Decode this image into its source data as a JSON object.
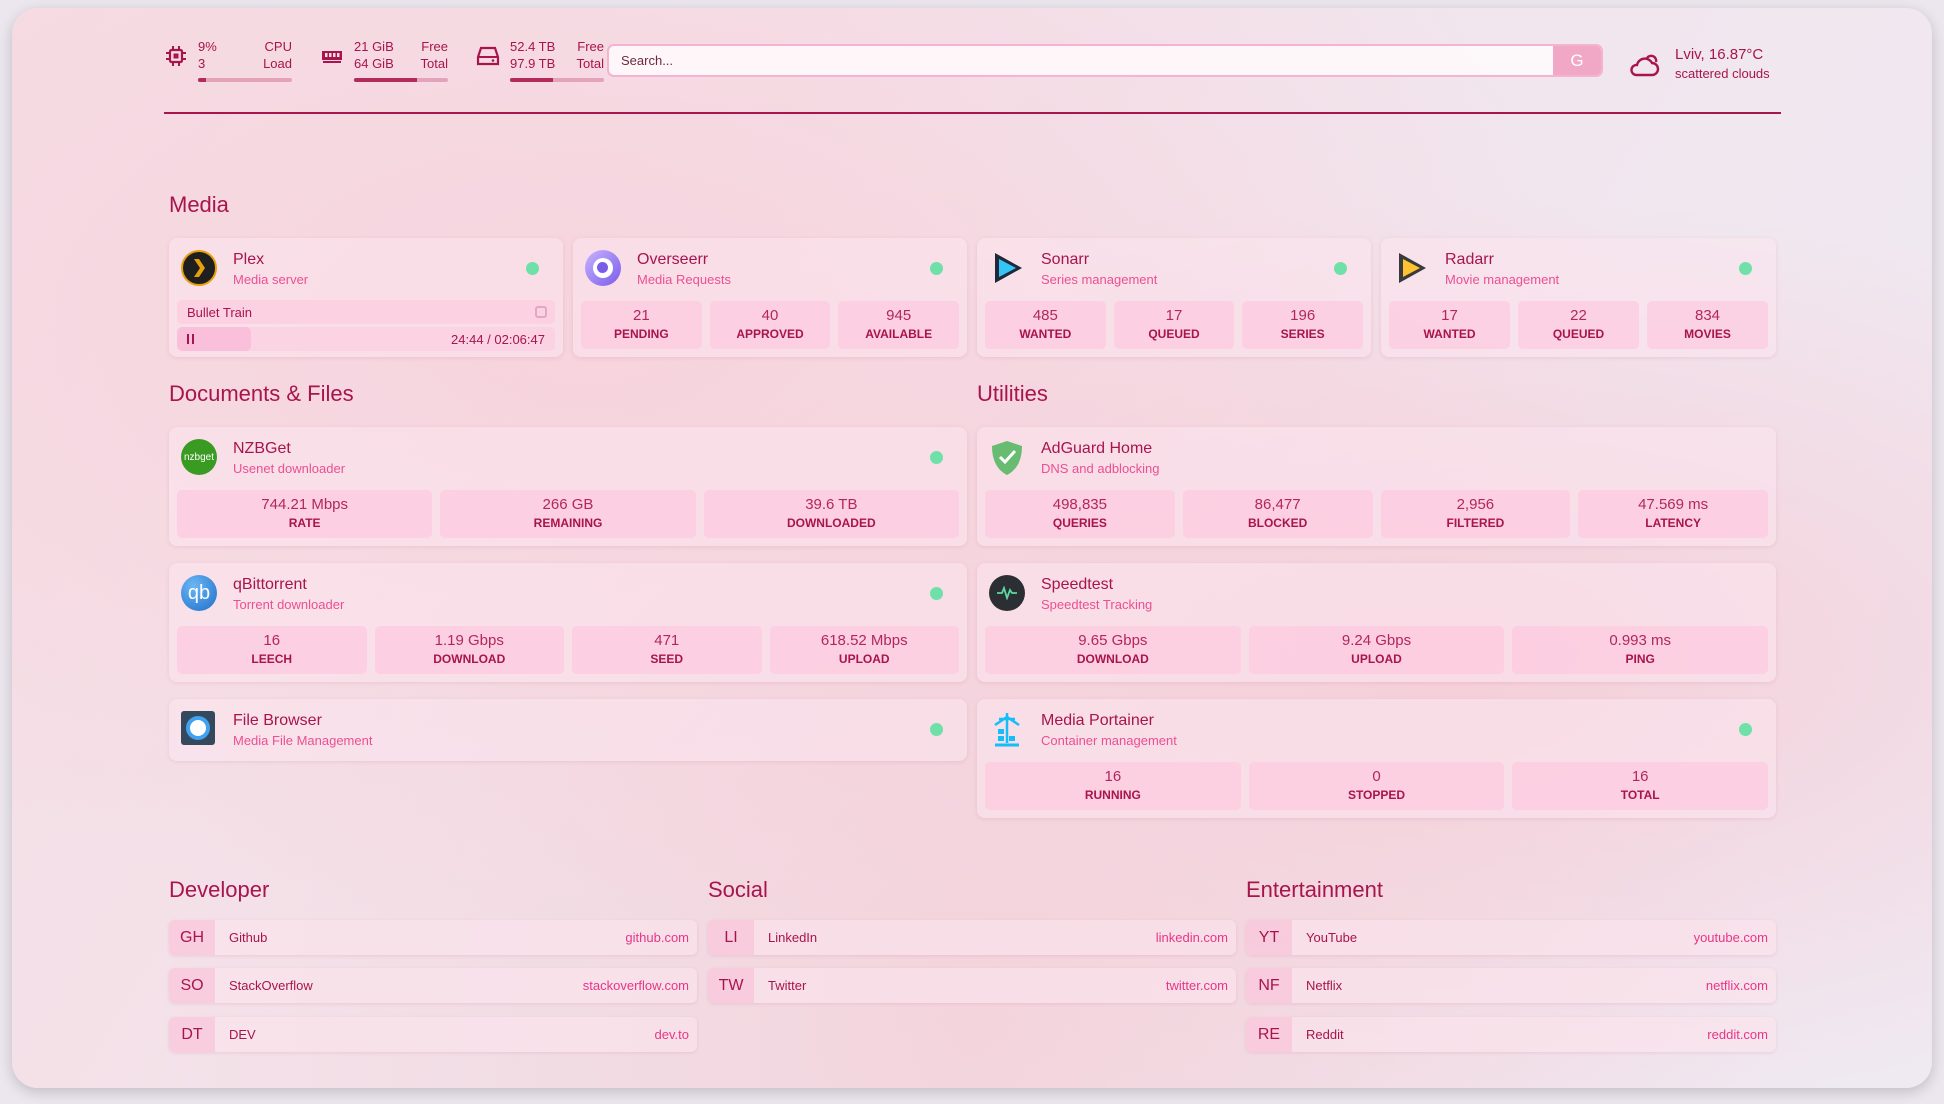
{
  "resources": {
    "cpu": {
      "icon": "cpu-icon",
      "value": "9%",
      "value2": "3",
      "label": "CPU",
      "label2": "Load",
      "percent": 9
    },
    "memory": {
      "icon": "memory-icon",
      "value": "21 GiB",
      "value2": "64 GiB",
      "label": "Free",
      "label2": "Total",
      "percent": 67
    },
    "disk": {
      "icon": "disk-icon",
      "value": "52.4 TB",
      "value2": "97.9 TB",
      "label": "Free",
      "label2": "Total",
      "percent": 46
    }
  },
  "search": {
    "placeholder": "Search...",
    "provider_label": "G"
  },
  "weather": {
    "icon": "cloud-sun-icon",
    "location_temp": "Lviv, 16.87°C",
    "condition": "scattered clouds"
  },
  "colors": {
    "accent": "#a8144c",
    "subtitle": "#ec4f92",
    "status_ok": "#6ee0a8",
    "stat_bg": "#ffc3dc"
  },
  "groups": {
    "media": "Media",
    "docs": "Documents & Files",
    "utilities": "Utilities",
    "developer": "Developer",
    "social": "Social",
    "entertainment": "Entertainment"
  },
  "services": [
    {
      "id": "plex",
      "icon": "plex-icon",
      "title": "Plex",
      "sub": "Media server",
      "status": "online",
      "now_playing": {
        "title": "Bullet Train",
        "time": "24:44 / 02:06:47",
        "progress_percent": 19.5
      }
    },
    {
      "id": "overseerr",
      "icon": "overseerr-icon",
      "title": "Overseerr",
      "sub": "Media Requests",
      "status": "online",
      "stats": [
        {
          "v": "21",
          "l": "PENDING"
        },
        {
          "v": "40",
          "l": "APPROVED"
        },
        {
          "v": "945",
          "l": "AVAILABLE"
        }
      ]
    },
    {
      "id": "sonarr",
      "icon": "sonarr-icon",
      "title": "Sonarr",
      "sub": "Series management",
      "status": "online",
      "stats": [
        {
          "v": "485",
          "l": "WANTED"
        },
        {
          "v": "17",
          "l": "QUEUED"
        },
        {
          "v": "196",
          "l": "SERIES"
        }
      ]
    },
    {
      "id": "radarr",
      "icon": "radarr-icon",
      "title": "Radarr",
      "sub": "Movie management",
      "status": "online",
      "stats": [
        {
          "v": "17",
          "l": "WANTED"
        },
        {
          "v": "22",
          "l": "QUEUED"
        },
        {
          "v": "834",
          "l": "MOVIES"
        }
      ]
    },
    {
      "id": "nzbget",
      "icon": "nzbget-icon",
      "icon_text": "nzbget",
      "title": "NZBGet",
      "sub": "Usenet downloader",
      "status": "online",
      "stats": [
        {
          "v": "744.21 Mbps",
          "l": "RATE"
        },
        {
          "v": "266 GB",
          "l": "REMAINING"
        },
        {
          "v": "39.6 TB",
          "l": "DOWNLOADED"
        }
      ]
    },
    {
      "id": "qbittorrent",
      "icon": "qbittorrent-icon",
      "icon_text": "qb",
      "title": "qBittorrent",
      "sub": "Torrent downloader",
      "status": "online",
      "stats": [
        {
          "v": "16",
          "l": "LEECH"
        },
        {
          "v": "1.19 Gbps",
          "l": "DOWNLOAD"
        },
        {
          "v": "471",
          "l": "SEED"
        },
        {
          "v": "618.52 Mbps",
          "l": "UPLOAD"
        }
      ]
    },
    {
      "id": "filebrowser",
      "icon": "filebrowser-icon",
      "title": "File Browser",
      "sub": "Media File Management",
      "status": "online"
    },
    {
      "id": "adguard",
      "icon": "adguard-icon",
      "title": "AdGuard Home",
      "sub": "DNS and adblocking",
      "stats": [
        {
          "v": "498,835",
          "l": "QUERIES"
        },
        {
          "v": "86,477",
          "l": "BLOCKED"
        },
        {
          "v": "2,956",
          "l": "FILTERED"
        },
        {
          "v": "47.569 ms",
          "l": "LATENCY"
        }
      ]
    },
    {
      "id": "speedtest",
      "icon": "speedtest-icon",
      "title": "Speedtest",
      "sub": "Speedtest Tracking",
      "stats": [
        {
          "v": "9.65 Gbps",
          "l": "DOWNLOAD"
        },
        {
          "v": "9.24 Gbps",
          "l": "UPLOAD"
        },
        {
          "v": "0.993 ms",
          "l": "PING"
        }
      ]
    },
    {
      "id": "portainer",
      "icon": "portainer-icon",
      "title": "Media Portainer",
      "sub": "Container management",
      "status": "online",
      "stats": [
        {
          "v": "16",
          "l": "RUNNING"
        },
        {
          "v": "0",
          "l": "STOPPED"
        },
        {
          "v": "16",
          "l": "TOTAL"
        }
      ]
    }
  ],
  "bookmarks": [
    [
      {
        "abbr": "GH",
        "name": "Github",
        "url": "github.com"
      },
      {
        "abbr": "SO",
        "name": "StackOverflow",
        "url": "stackoverflow.com"
      },
      {
        "abbr": "DT",
        "name": "DEV",
        "url": "dev.to"
      }
    ],
    [
      {
        "abbr": "LI",
        "name": "LinkedIn",
        "url": "linkedin.com"
      },
      {
        "abbr": "TW",
        "name": "Twitter",
        "url": "twitter.com"
      }
    ],
    [
      {
        "abbr": "YT",
        "name": "YouTube",
        "url": "youtube.com"
      },
      {
        "abbr": "NF",
        "name": "Netflix",
        "url": "netflix.com"
      },
      {
        "abbr": "RE",
        "name": "Reddit",
        "url": "reddit.com"
      }
    ]
  ]
}
